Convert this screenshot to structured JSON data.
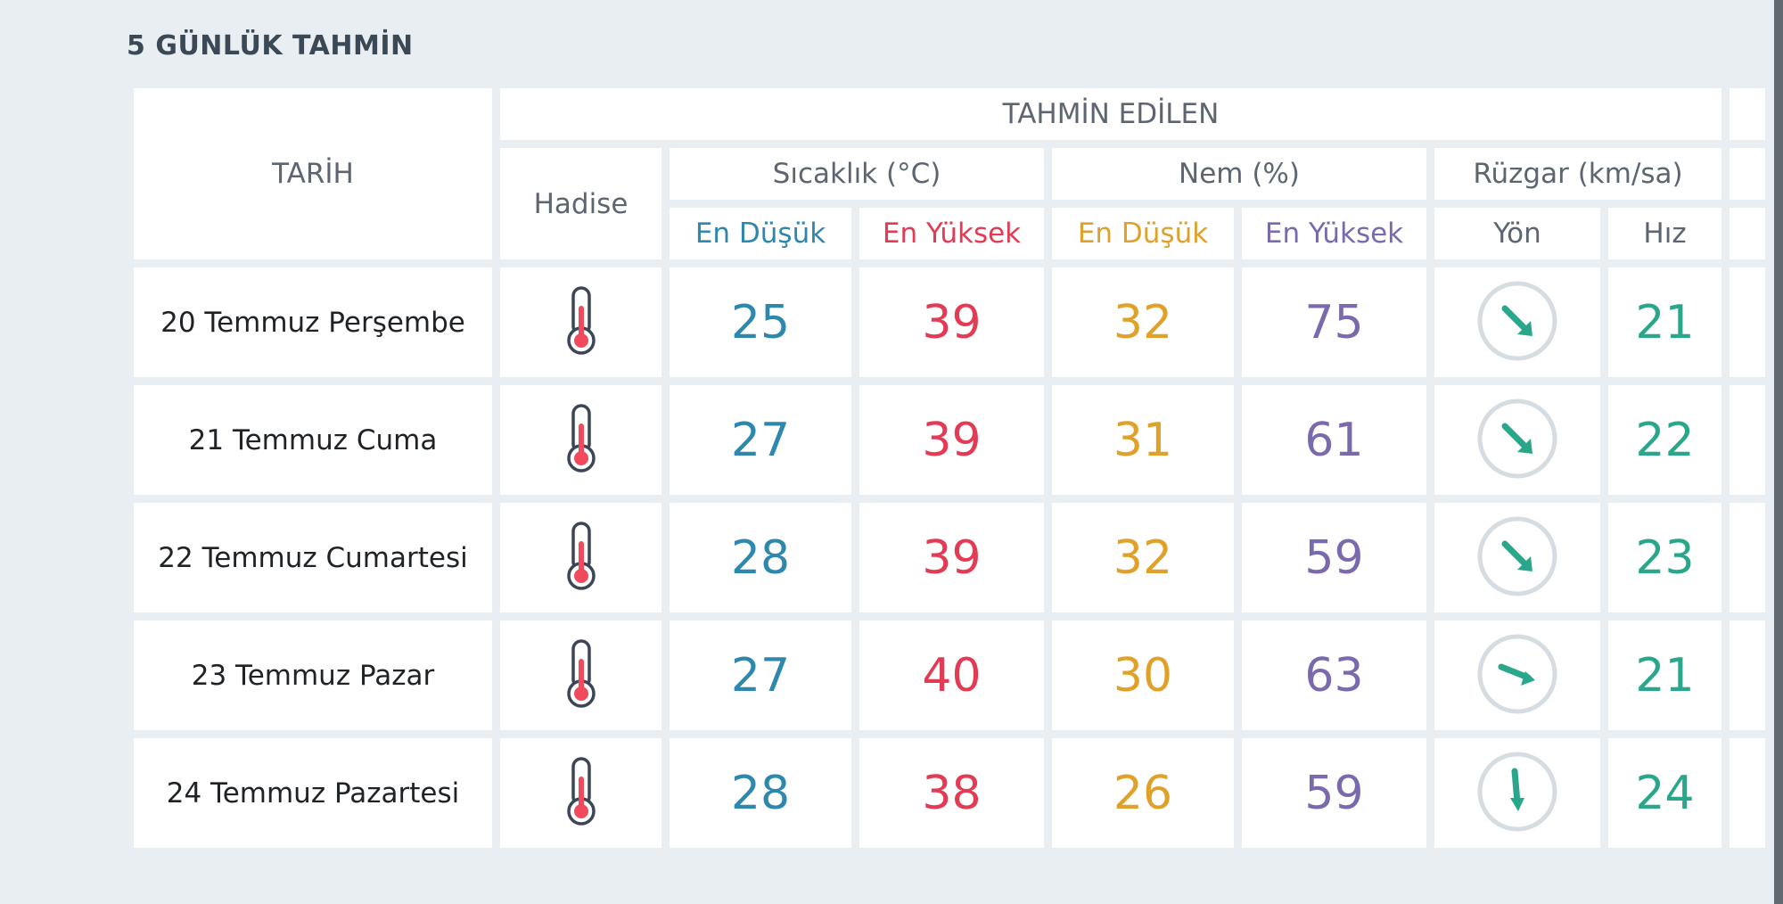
{
  "section_title": "5 GÜNLÜK TAHMİN",
  "header": {
    "date_col": "TARİH",
    "predicted": "TAHMİN EDİLEN",
    "event": "Hadise",
    "temperature": "Sıcaklık (°C)",
    "humidity": "Nem (%)",
    "wind": "Rüzgar (km/sa)",
    "temp_min": "En Düşük",
    "temp_max": "En Yüksek",
    "hum_min": "En Düşük",
    "hum_max": "En Yüksek",
    "wind_dir": "Yön",
    "wind_speed": "Hız"
  },
  "colors": {
    "temp_min": "#2e87ad",
    "temp_max": "#e23b53",
    "hum_min": "#e0a12a",
    "hum_max": "#7a6aad",
    "wind": "#2aa68a",
    "background": "#e8eef2"
  },
  "rows": [
    {
      "date": "20 Temmuz Perşembe",
      "event_icon": "thermometer-hot-icon",
      "temp_min": "25",
      "temp_max": "39",
      "hum_min": "32",
      "hum_max": "75",
      "wind_dir": "SE",
      "wind_speed": "21"
    },
    {
      "date": "21 Temmuz Cuma",
      "event_icon": "thermometer-hot-icon",
      "temp_min": "27",
      "temp_max": "39",
      "hum_min": "31",
      "hum_max": "61",
      "wind_dir": "SE",
      "wind_speed": "22"
    },
    {
      "date": "22 Temmuz Cumartesi",
      "event_icon": "thermometer-hot-icon",
      "temp_min": "28",
      "temp_max": "39",
      "hum_min": "32",
      "hum_max": "59",
      "wind_dir": "SE",
      "wind_speed": "23"
    },
    {
      "date": "23 Temmuz Pazar",
      "event_icon": "thermometer-hot-icon",
      "temp_min": "27",
      "temp_max": "40",
      "hum_min": "30",
      "hum_max": "63",
      "wind_dir": "ESE",
      "wind_speed": "21"
    },
    {
      "date": "24 Temmuz Pazartesi",
      "event_icon": "thermometer-hot-icon",
      "temp_min": "28",
      "temp_max": "38",
      "hum_min": "26",
      "hum_max": "59",
      "wind_dir": "S",
      "wind_speed": "24"
    }
  ]
}
